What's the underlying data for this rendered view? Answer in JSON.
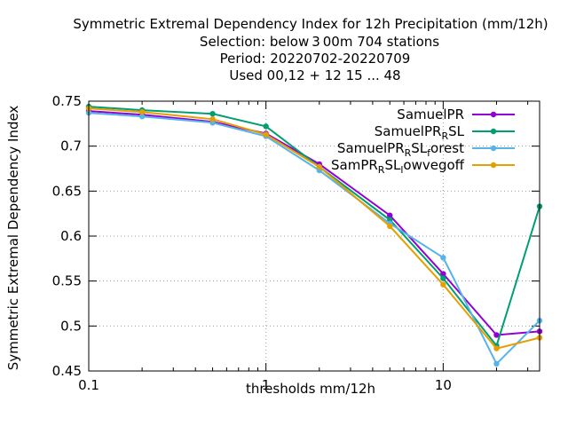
{
  "chart_data": {
    "type": "line",
    "title_lines": [
      "Symmetric Extremal Dependency Index  for 12h Precipitation (mm/12h)",
      "Selection: below 3 00m    704 stations",
      "Period: 20220702-20220709",
      "Used  00,12  + 12 15 ... 48"
    ],
    "xlabel": "thresholds mm/12h",
    "ylabel": "Symmetric Extremal Dependency Index",
    "x_scale": "log",
    "xlim": [
      0.1,
      35
    ],
    "ylim": [
      0.45,
      0.75
    ],
    "x_ticks": [
      0.1,
      1,
      10
    ],
    "x_tick_labels": [
      "0.1",
      "1",
      "10"
    ],
    "y_ticks": [
      0.45,
      0.5,
      0.55,
      0.6,
      0.65,
      0.7,
      0.75
    ],
    "y_tick_labels": [
      "0.45",
      "0.5",
      "0.55",
      "0.6",
      "0.65",
      "0.7",
      "0.75"
    ],
    "grid": true,
    "legend_position": "top-right",
    "x": [
      0.1,
      0.2,
      0.5,
      1,
      2,
      5,
      10,
      20,
      35
    ],
    "series": [
      {
        "name": "SamuelPR",
        "label_main": "SamuelPR",
        "label_sub": "",
        "label_tail": "",
        "color": "#9400d3",
        "values": [
          0.739,
          0.735,
          0.727,
          0.714,
          0.68,
          0.623,
          0.558,
          0.49,
          0.494
        ]
      },
      {
        "name": "SamuelPR_RSL",
        "label_main": "SamuelPR",
        "label_sub": "R",
        "label_tail": "SL",
        "color": "#009e73",
        "values": [
          0.744,
          0.74,
          0.736,
          0.722,
          0.677,
          0.618,
          0.553,
          0.478,
          0.633
        ]
      },
      {
        "name": "SamuelPR_RSL_forest",
        "label_main": "SamuelPR",
        "label_sub": "R",
        "label_tail": "SL",
        "label_sub2": "f",
        "label_tail2": "orest",
        "color": "#56b4e9",
        "values": [
          0.737,
          0.733,
          0.726,
          0.711,
          0.673,
          0.614,
          0.576,
          0.458,
          0.506
        ]
      },
      {
        "name": "SamPR_RSL_lowvegoff",
        "label_main": "SamPR",
        "label_sub": "R",
        "label_tail": "SL",
        "label_sub2": "l",
        "label_tail2": "owvegoff",
        "color": "#e69f00",
        "values": [
          0.742,
          0.738,
          0.73,
          0.713,
          0.677,
          0.611,
          0.546,
          0.475,
          0.487
        ]
      }
    ]
  }
}
